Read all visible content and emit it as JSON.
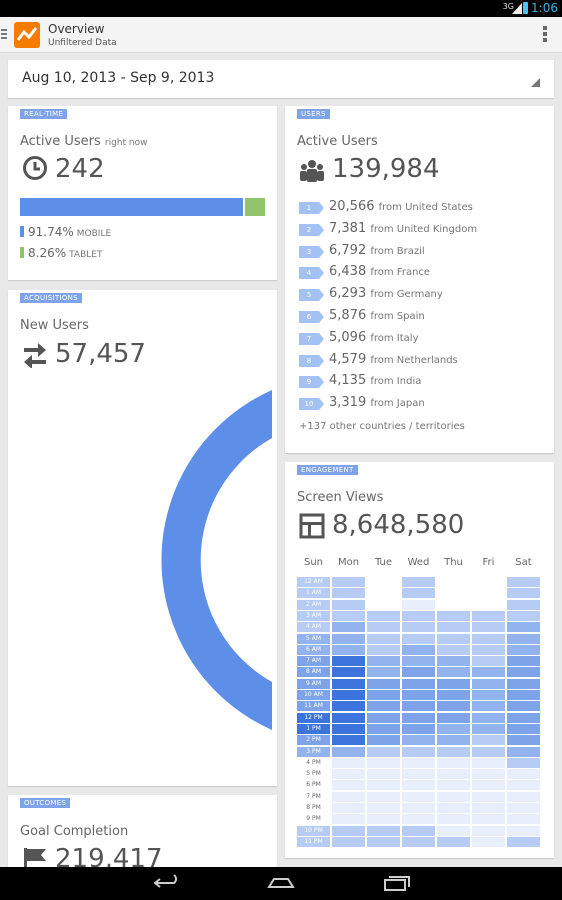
{
  "status_bar": {
    "signal": "3G",
    "time": "1:06"
  },
  "app_bar": {
    "title": "Overview",
    "subtitle": "Unfiltered Data"
  },
  "date_range": "Aug 10, 2013 - Sep 9, 2013",
  "realtime": {
    "tag": "REAL-TIME",
    "title": "Active Users",
    "title_suffix": "right now",
    "value": "242",
    "mobile_pct": "91.74%",
    "mobile_label": "MOBILE",
    "tablet_pct": "8.26%",
    "tablet_label": "TABLET",
    "mobile_fraction": 0.9174,
    "colors": {
      "mobile": "#5d8ee8",
      "tablet": "#8fc36c"
    }
  },
  "acquisitions": {
    "tag": "ACQUISITIONS",
    "title": "New Users",
    "value": "57,457",
    "donut_color": "#5d8ee8"
  },
  "outcomes": {
    "tag": "OUTCOMES",
    "title": "Goal Completion",
    "value": "219,417"
  },
  "users": {
    "tag": "USERS",
    "title": "Active Users",
    "value": "139,984",
    "countries": [
      {
        "rank": "1",
        "count": "20,566",
        "from": "from United States"
      },
      {
        "rank": "2",
        "count": "7,381",
        "from": "from United Kingdom"
      },
      {
        "rank": "3",
        "count": "6,792",
        "from": "from Brazil"
      },
      {
        "rank": "4",
        "count": "6,438",
        "from": "from France"
      },
      {
        "rank": "5",
        "count": "6,293",
        "from": "from Germany"
      },
      {
        "rank": "6",
        "count": "5,876",
        "from": "from Spain"
      },
      {
        "rank": "7",
        "count": "5,096",
        "from": "from Italy"
      },
      {
        "rank": "8",
        "count": "4,579",
        "from": "from Netherlands"
      },
      {
        "rank": "9",
        "count": "4,135",
        "from": "from India"
      },
      {
        "rank": "10",
        "count": "3,319",
        "from": "from Japan"
      }
    ],
    "other": "+137 other countries / territories"
  },
  "engagement": {
    "tag": "ENGAGEMENT",
    "title": "Screen Views",
    "value": "8,648,580",
    "days": [
      "Sun",
      "Mon",
      "Tue",
      "Wed",
      "Thu",
      "Fri",
      "Sat"
    ],
    "hours": [
      "12 AM",
      "1 AM",
      "2 AM",
      "3 AM",
      "4 AM",
      "5 AM",
      "6 AM",
      "7 AM",
      "8 AM",
      "9 AM",
      "10 AM",
      "11 AM",
      "12 PM",
      "1 PM",
      "2 PM",
      "3 PM",
      "4 PM",
      "5 PM",
      "6 PM",
      "7 PM",
      "8 PM",
      "9 PM",
      "10 PM",
      "11 PM"
    ],
    "intensity": [
      [
        2,
        2,
        0,
        2,
        0,
        0,
        2
      ],
      [
        2,
        2,
        0,
        2,
        0,
        0,
        2
      ],
      [
        2,
        2,
        0,
        1,
        0,
        0,
        2
      ],
      [
        2,
        2,
        2,
        2,
        2,
        2,
        2
      ],
      [
        2,
        3,
        2,
        2,
        2,
        2,
        3
      ],
      [
        3,
        3,
        2,
        2,
        2,
        2,
        3
      ],
      [
        3,
        3,
        2,
        3,
        2,
        2,
        3
      ],
      [
        4,
        5,
        3,
        3,
        3,
        2,
        4
      ],
      [
        4,
        5,
        3,
        4,
        3,
        3,
        4
      ],
      [
        4,
        5,
        4,
        4,
        4,
        3,
        4
      ],
      [
        4,
        5,
        4,
        4,
        4,
        3,
        4
      ],
      [
        4,
        5,
        4,
        4,
        4,
        3,
        4
      ],
      [
        5,
        5,
        4,
        4,
        4,
        3,
        4
      ],
      [
        5,
        5,
        4,
        4,
        3,
        3,
        4
      ],
      [
        4,
        5,
        4,
        3,
        3,
        2,
        4
      ],
      [
        3,
        3,
        2,
        2,
        2,
        2,
        3
      ],
      [
        0,
        1,
        1,
        1,
        1,
        1,
        2
      ],
      [
        0,
        1,
        1,
        1,
        1,
        1,
        1
      ],
      [
        0,
        1,
        1,
        1,
        1,
        1,
        1
      ],
      [
        0,
        1,
        1,
        1,
        1,
        1,
        1
      ],
      [
        0,
        1,
        1,
        1,
        1,
        1,
        1
      ],
      [
        0,
        1,
        1,
        1,
        1,
        1,
        1
      ],
      [
        2,
        2,
        2,
        2,
        1,
        1,
        1
      ],
      [
        2,
        2,
        2,
        2,
        2,
        1,
        2
      ]
    ],
    "palette": [
      "#ffffff",
      "#e8eefb",
      "#b7ccf4",
      "#93b3ef",
      "#7ea3e9",
      "#3c74dc"
    ]
  }
}
